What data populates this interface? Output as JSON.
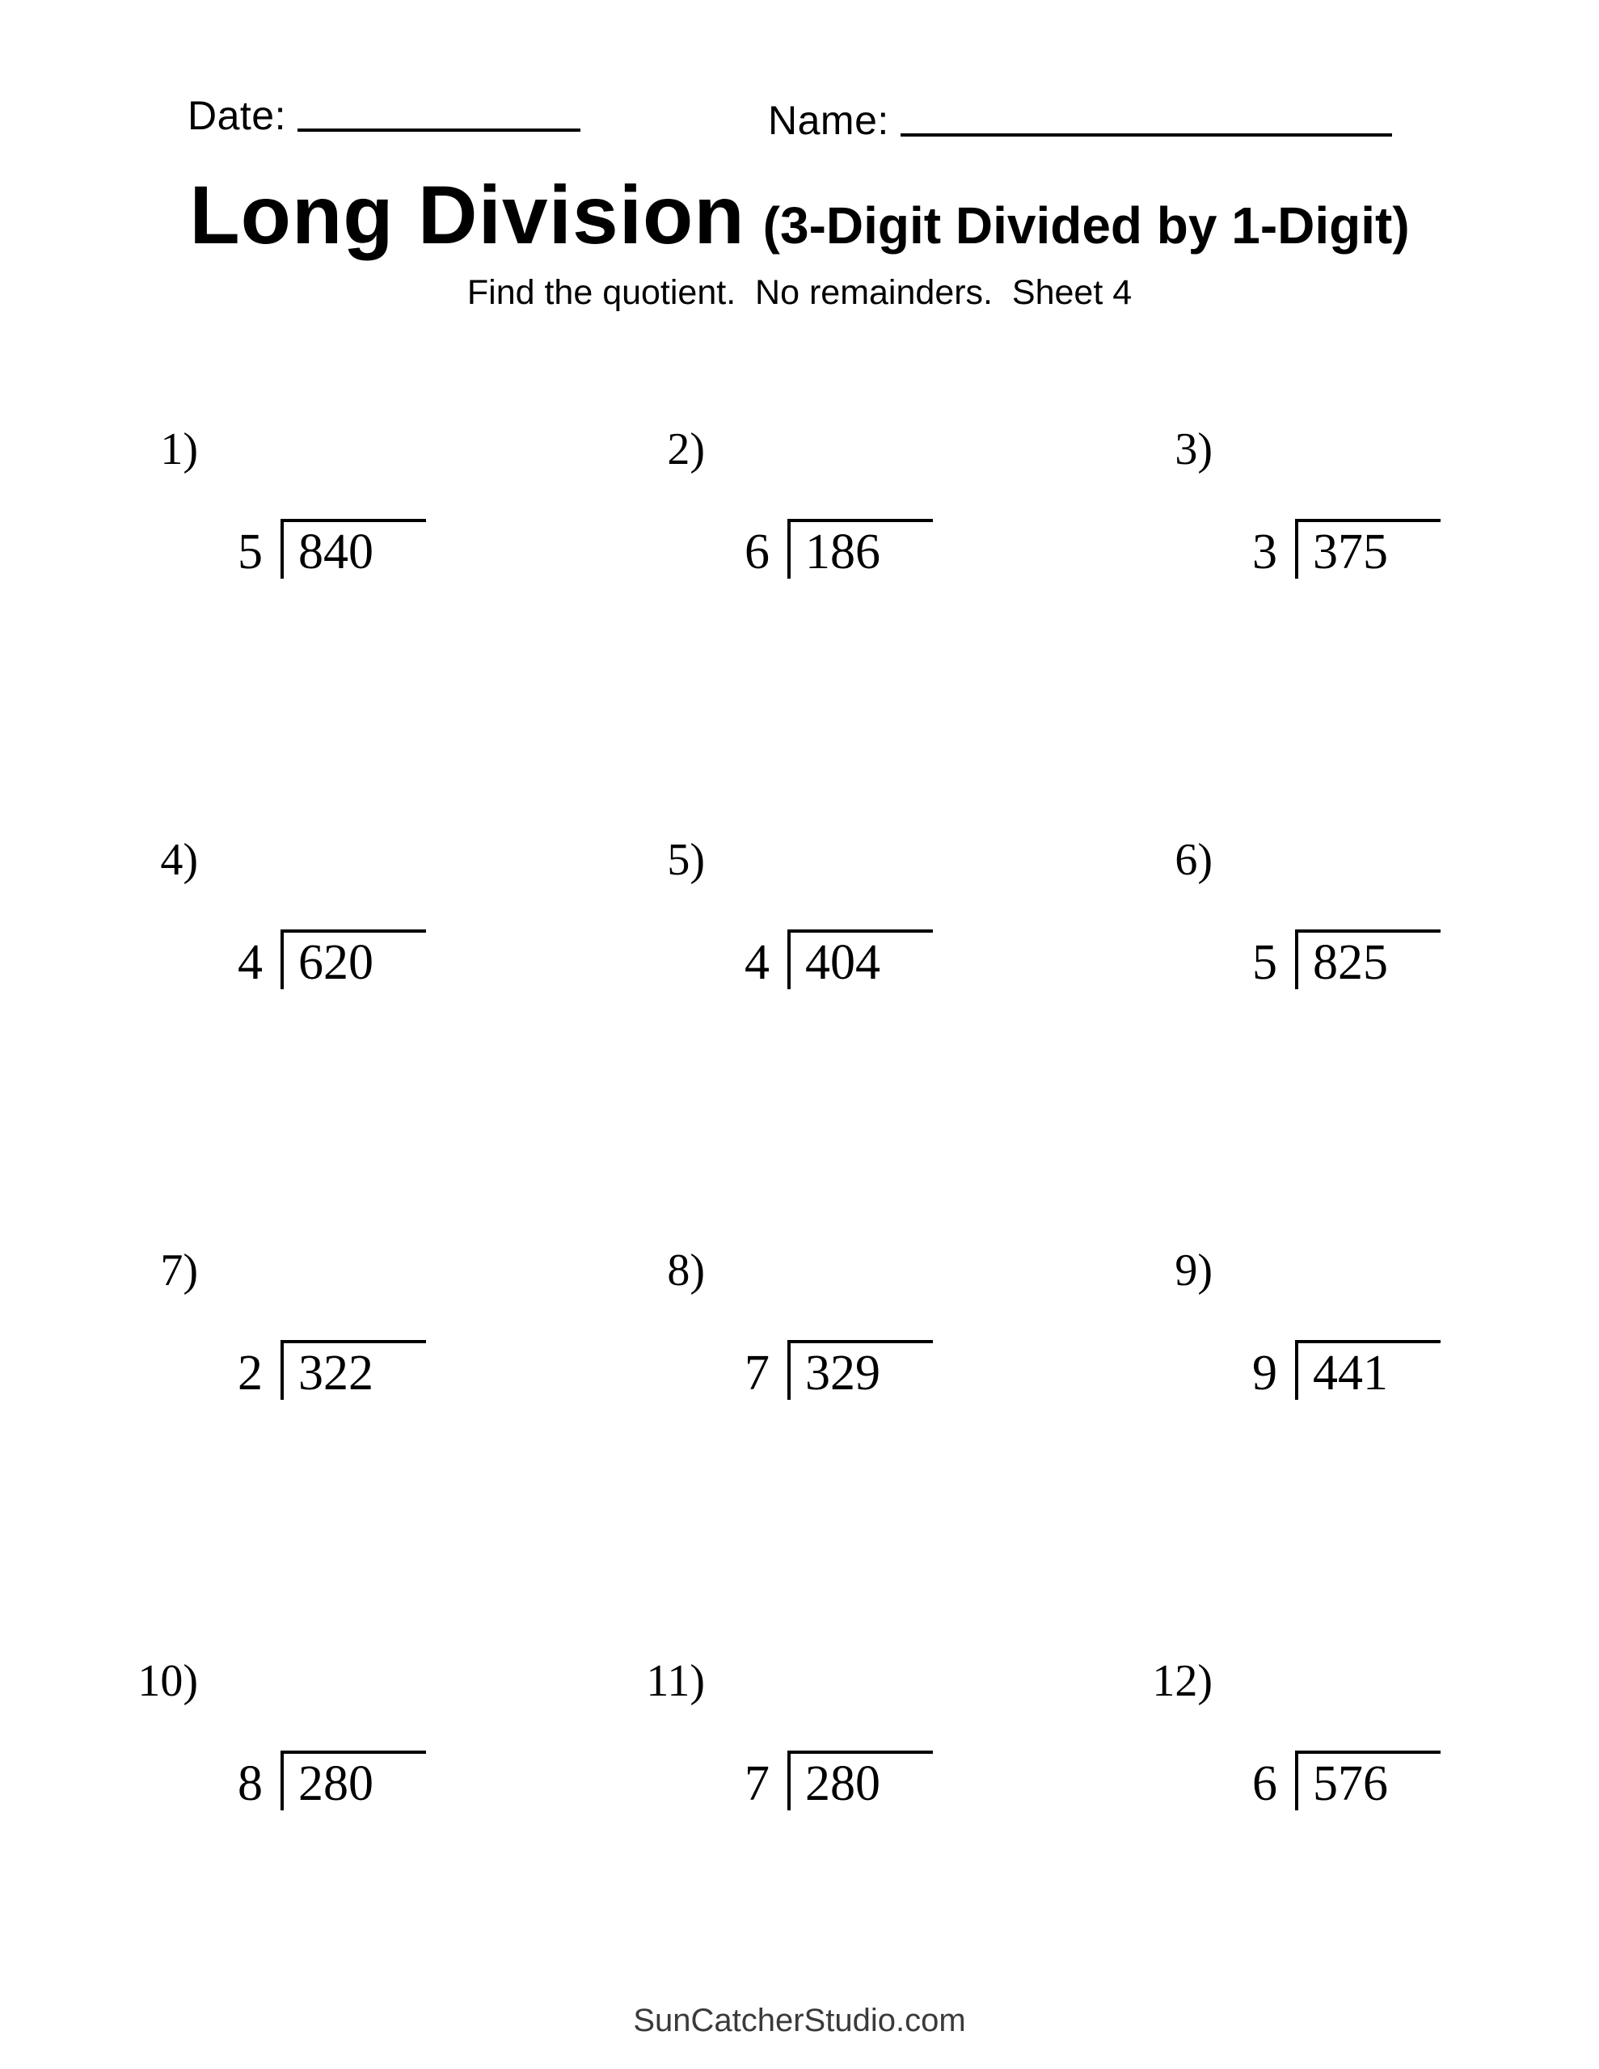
{
  "page": {
    "date_label": "Date:",
    "name_label": "Name:"
  },
  "title": {
    "main": "Long Division",
    "qualifier": "(3-Digit Divided by 1-Digit)"
  },
  "subtitle": "Find the quotient.  No remainders.  Sheet 4",
  "problems": [
    {
      "number": "1)",
      "divisor": "5",
      "dividend": "840"
    },
    {
      "number": "2)",
      "divisor": "6",
      "dividend": "186"
    },
    {
      "number": "3)",
      "divisor": "3",
      "dividend": "375"
    },
    {
      "number": "4)",
      "divisor": "4",
      "dividend": "620"
    },
    {
      "number": "5)",
      "divisor": "4",
      "dividend": "404"
    },
    {
      "number": "6)",
      "divisor": "5",
      "dividend": "825"
    },
    {
      "number": "7)",
      "divisor": "2",
      "dividend": "322"
    },
    {
      "number": "8)",
      "divisor": "7",
      "dividend": "329"
    },
    {
      "number": "9)",
      "divisor": "9",
      "dividend": "441"
    },
    {
      "number": "10)",
      "divisor": "8",
      "dividend": "280"
    },
    {
      "number": "11)",
      "divisor": "7",
      "dividend": "280"
    },
    {
      "number": "12)",
      "divisor": "6",
      "dividend": "576"
    }
  ],
  "footer": {
    "site": "SunCatcherStudio.com"
  },
  "colors": {
    "ink": "#000000",
    "footer_text": "#3a3a3a",
    "page_bg": "#ffffff"
  }
}
